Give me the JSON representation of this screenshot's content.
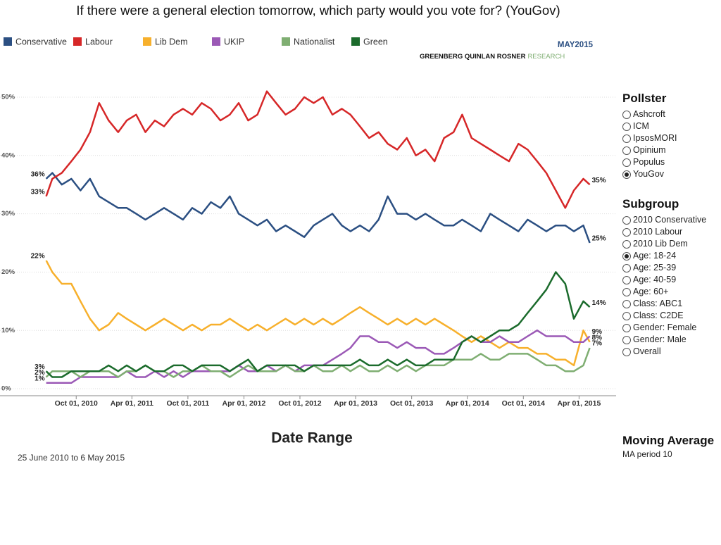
{
  "chart_data": {
    "type": "line",
    "title": "If there were a general election tomorrow, which party would you vote for? (YouGov)",
    "x_title": "Date Range",
    "x": [
      "2010-06-25",
      "2010-07-15",
      "2010-08-15",
      "2010-09-15",
      "2010-10-15",
      "2010-11-15",
      "2010-12-15",
      "2011-01-15",
      "2011-02-15",
      "2011-03-15",
      "2011-04-15",
      "2011-05-15",
      "2011-06-15",
      "2011-07-15",
      "2011-08-15",
      "2011-09-15",
      "2011-10-15",
      "2011-11-15",
      "2011-12-15",
      "2012-01-15",
      "2012-02-15",
      "2012-03-15",
      "2012-04-15",
      "2012-05-15",
      "2012-06-15",
      "2012-07-15",
      "2012-08-15",
      "2012-09-15",
      "2012-10-15",
      "2012-11-15",
      "2012-12-15",
      "2013-01-15",
      "2013-02-15",
      "2013-03-15",
      "2013-04-15",
      "2013-05-15",
      "2013-06-15",
      "2013-07-15",
      "2013-08-15",
      "2013-09-15",
      "2013-10-15",
      "2013-11-15",
      "2013-12-15",
      "2014-01-15",
      "2014-02-15",
      "2014-03-15",
      "2014-04-15",
      "2014-05-15",
      "2014-06-15",
      "2014-07-15",
      "2014-08-15",
      "2014-09-15",
      "2014-10-15",
      "2014-11-15",
      "2014-12-15",
      "2015-01-15",
      "2015-02-15",
      "2015-03-15",
      "2015-04-15",
      "2015-05-06"
    ],
    "series": [
      {
        "name": "Conservative",
        "color": "#2b4f82",
        "values": [
          36,
          37,
          35,
          36,
          34,
          36,
          33,
          32,
          31,
          31,
          30,
          29,
          30,
          31,
          30,
          29,
          31,
          30,
          32,
          31,
          33,
          30,
          29,
          28,
          29,
          27,
          28,
          27,
          26,
          28,
          29,
          30,
          28,
          27,
          28,
          27,
          29,
          33,
          30,
          30,
          29,
          30,
          29,
          28,
          28,
          29,
          28,
          27,
          30,
          29,
          28,
          27,
          29,
          28,
          27,
          28,
          28,
          27,
          28,
          25
        ],
        "value_labels": [
          "36%",
          null,
          null,
          null,
          null,
          null,
          null,
          null,
          null,
          null,
          null,
          null,
          null,
          null,
          null,
          null,
          null,
          null,
          null,
          null,
          null,
          null,
          null,
          null,
          null,
          null,
          null,
          null,
          null,
          null,
          null,
          null,
          null,
          null,
          null,
          null,
          null,
          null,
          null,
          null,
          null,
          null,
          null,
          null,
          null,
          null,
          null,
          null,
          null,
          null,
          null,
          null,
          null,
          null,
          null,
          null,
          null,
          null,
          null,
          "25%"
        ]
      },
      {
        "name": "Labour",
        "color": "#d62728",
        "values": [
          33,
          36,
          37,
          39,
          41,
          44,
          49,
          46,
          44,
          46,
          47,
          44,
          46,
          45,
          47,
          48,
          47,
          49,
          48,
          46,
          47,
          49,
          46,
          47,
          51,
          49,
          47,
          48,
          50,
          49,
          50,
          47,
          48,
          47,
          45,
          43,
          44,
          42,
          41,
          43,
          40,
          41,
          39,
          43,
          44,
          47,
          43,
          42,
          41,
          40,
          39,
          42,
          41,
          39,
          37,
          34,
          31,
          34,
          36,
          35
        ],
        "value_labels": [
          "33%",
          null,
          null,
          null,
          null,
          null,
          null,
          null,
          null,
          null,
          null,
          null,
          null,
          null,
          null,
          null,
          null,
          null,
          null,
          null,
          null,
          null,
          null,
          null,
          null,
          null,
          null,
          null,
          null,
          null,
          null,
          null,
          null,
          null,
          null,
          null,
          null,
          null,
          null,
          null,
          null,
          null,
          null,
          null,
          null,
          null,
          null,
          null,
          null,
          null,
          null,
          null,
          null,
          null,
          null,
          null,
          null,
          null,
          null,
          "35%"
        ]
      },
      {
        "name": "Lib Dem",
        "color": "#f7b02c",
        "values": [
          22,
          20,
          18,
          18,
          15,
          12,
          10,
          11,
          13,
          12,
          11,
          10,
          11,
          12,
          11,
          10,
          11,
          10,
          11,
          11,
          12,
          11,
          10,
          11,
          10,
          11,
          12,
          11,
          12,
          11,
          12,
          11,
          12,
          13,
          14,
          13,
          12,
          11,
          12,
          11,
          12,
          11,
          12,
          11,
          10,
          9,
          8,
          9,
          8,
          7,
          8,
          7,
          7,
          6,
          6,
          5,
          5,
          4,
          10,
          8
        ],
        "value_labels": [
          "22%",
          null,
          null,
          null,
          null,
          null,
          null,
          null,
          null,
          null,
          null,
          null,
          null,
          null,
          null,
          null,
          null,
          null,
          null,
          null,
          null,
          null,
          null,
          null,
          null,
          null,
          null,
          null,
          null,
          null,
          null,
          null,
          null,
          null,
          null,
          null,
          null,
          null,
          null,
          null,
          null,
          null,
          null,
          null,
          null,
          null,
          null,
          null,
          null,
          null,
          null,
          null,
          null,
          null,
          null,
          null,
          null,
          null,
          null,
          "8%"
        ]
      },
      {
        "name": "UKIP",
        "color": "#9b59b6",
        "values": [
          1,
          1,
          1,
          1,
          2,
          2,
          2,
          2,
          2,
          3,
          2,
          2,
          3,
          2,
          3,
          2,
          3,
          3,
          3,
          3,
          3,
          4,
          3,
          3,
          4,
          3,
          4,
          3,
          4,
          4,
          4,
          5,
          6,
          7,
          9,
          9,
          8,
          8,
          7,
          8,
          7,
          7,
          6,
          6,
          7,
          8,
          9,
          8,
          8,
          9,
          8,
          8,
          9,
          10,
          9,
          9,
          9,
          8,
          8,
          9
        ],
        "value_labels": [
          "1%",
          null,
          null,
          null,
          null,
          null,
          null,
          null,
          null,
          null,
          null,
          null,
          null,
          null,
          null,
          null,
          null,
          null,
          null,
          null,
          null,
          null,
          null,
          null,
          null,
          null,
          null,
          null,
          null,
          null,
          null,
          null,
          null,
          null,
          null,
          null,
          null,
          null,
          null,
          null,
          null,
          null,
          null,
          null,
          null,
          null,
          null,
          null,
          null,
          null,
          null,
          null,
          null,
          null,
          null,
          null,
          null,
          null,
          null,
          "9%"
        ]
      },
      {
        "name": "Nationalist",
        "color": "#7fae72",
        "values": [
          2,
          3,
          3,
          3,
          2,
          3,
          3,
          3,
          2,
          3,
          3,
          4,
          3,
          3,
          2,
          3,
          3,
          4,
          3,
          3,
          2,
          3,
          4,
          3,
          3,
          3,
          4,
          3,
          3,
          4,
          3,
          3,
          4,
          3,
          4,
          3,
          3,
          4,
          3,
          4,
          3,
          4,
          4,
          4,
          5,
          5,
          5,
          6,
          5,
          5,
          6,
          6,
          6,
          5,
          4,
          4,
          3,
          3,
          4,
          7
        ],
        "value_labels": [
          "2%",
          null,
          null,
          null,
          null,
          null,
          null,
          null,
          null,
          null,
          null,
          null,
          null,
          null,
          null,
          null,
          null,
          null,
          null,
          null,
          null,
          null,
          null,
          null,
          null,
          null,
          null,
          null,
          null,
          null,
          null,
          null,
          null,
          null,
          null,
          null,
          null,
          null,
          null,
          null,
          null,
          null,
          null,
          null,
          null,
          null,
          null,
          null,
          null,
          null,
          null,
          null,
          null,
          null,
          null,
          null,
          null,
          null,
          null,
          "7%"
        ]
      },
      {
        "name": "Green",
        "color": "#1b6b2c",
        "values": [
          3,
          2,
          2,
          3,
          3,
          3,
          3,
          4,
          3,
          4,
          3,
          4,
          3,
          3,
          4,
          4,
          3,
          4,
          4,
          4,
          3,
          4,
          5,
          3,
          4,
          4,
          4,
          4,
          3,
          4,
          4,
          4,
          4,
          4,
          5,
          4,
          4,
          5,
          4,
          5,
          4,
          4,
          5,
          5,
          5,
          8,
          9,
          8,
          9,
          10,
          10,
          11,
          13,
          15,
          17,
          20,
          18,
          12,
          15,
          14
        ],
        "value_labels": [
          "3%",
          null,
          null,
          null,
          null,
          null,
          null,
          null,
          null,
          null,
          null,
          null,
          null,
          null,
          null,
          null,
          null,
          null,
          null,
          null,
          null,
          null,
          null,
          null,
          null,
          null,
          null,
          null,
          null,
          null,
          null,
          null,
          null,
          null,
          null,
          null,
          null,
          null,
          null,
          null,
          null,
          null,
          null,
          null,
          null,
          null,
          null,
          null,
          null,
          null,
          null,
          null,
          null,
          null,
          null,
          null,
          null,
          null,
          null,
          "14%"
        ]
      }
    ],
    "xlim": [
      "2010-01-25",
      "2015-07-31"
    ],
    "xticks": [
      {
        "value": "2010-10-01",
        "label": "Oct 01, 2010"
      },
      {
        "value": "2011-04-01",
        "label": "Apr 01, 2011"
      },
      {
        "value": "2011-10-01",
        "label": "Oct 01, 2011"
      },
      {
        "value": "2012-04-01",
        "label": "Apr 01, 2012"
      },
      {
        "value": "2012-10-01",
        "label": "Oct 01, 2012"
      },
      {
        "value": "2013-04-01",
        "label": "Apr 01, 2013"
      },
      {
        "value": "2013-10-01",
        "label": "Oct 01, 2013"
      },
      {
        "value": "2014-04-01",
        "label": "Apr 01, 2014"
      },
      {
        "value": "2014-10-01",
        "label": "Oct 01, 2014"
      },
      {
        "value": "2015-04-01",
        "label": "Apr 01, 2015"
      }
    ],
    "ylim": [
      -1.2,
      53.5
    ],
    "yticks": [
      {
        "value": 0,
        "label": "0%"
      },
      {
        "value": 10,
        "label": "10%"
      },
      {
        "value": 20,
        "label": "20%"
      },
      {
        "value": 30,
        "label": "30%"
      },
      {
        "value": 40,
        "label": "40%"
      },
      {
        "value": 50,
        "label": "50%"
      }
    ],
    "grid": true
  },
  "date_range": "25 June 2010 to 6 May 2015",
  "branding": {
    "date": "MAY2015",
    "name": "GREENBERG QUINLAN ROSNER",
    "suffix": "RESEARCH"
  },
  "filters": [
    {
      "title": "Pollster",
      "options": [
        "Ashcroft",
        "ICM",
        "IpsosMORI",
        "Opinium",
        "Populus",
        "YouGov"
      ],
      "selected": 5
    },
    {
      "title": "Subgroup",
      "options": [
        "2010 Conservative",
        "2010 Labour",
        "2010 Lib Dem",
        "Age: 18-24",
        "Age: 25-39",
        "Age: 40-59",
        "Age: 60+",
        "Class: ABC1",
        "Class: C2DE",
        "Gender: Female",
        "Gender: Male",
        "Overall"
      ],
      "selected": 3
    }
  ],
  "moving_average": {
    "title": "Moving Average",
    "label": "MA period 10"
  }
}
